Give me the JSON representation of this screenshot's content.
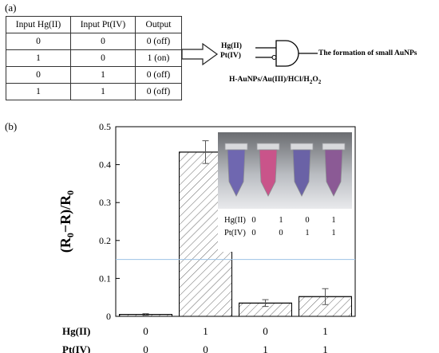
{
  "panel_a": {
    "label": "(a)",
    "table": {
      "headers": [
        "Input Hg(II)",
        "Input Pt(IV)",
        "Output"
      ],
      "rows": [
        [
          "0",
          "0",
          "0 (off)"
        ],
        [
          "1",
          "0",
          "1 (on)"
        ],
        [
          "0",
          "1",
          "0 (off)"
        ],
        [
          "1",
          "1",
          "0 (off)"
        ]
      ]
    },
    "gate": {
      "input1": "Hg(II)",
      "input2": "Pt(IV)",
      "output": "The formation of small AuNPs",
      "system": "H-AuNPs/Au(III)/HCl/H",
      "system_sub": "2",
      "system_o": "O",
      "system_sub2": "2"
    }
  },
  "panel_b": {
    "label": "(b)",
    "row_labels": [
      "Hg(II)",
      "Pt(IV)"
    ],
    "inset": {
      "tube_colors": [
        "#6f67b0",
        "#c9548a",
        "#6a62a6",
        "#8b5a95"
      ],
      "hg_label": "Hg(II)",
      "pt_label": "Pt(IV)",
      "hg_values": [
        "0",
        "1",
        "0",
        "1"
      ],
      "pt_values": [
        "0",
        "0",
        "1",
        "1"
      ]
    }
  },
  "chart_data": {
    "type": "bar",
    "categories": [
      "Hg(II)=0, Pt(IV)=0",
      "Hg(II)=1, Pt(IV)=0",
      "Hg(II)=0, Pt(IV)=1",
      "Hg(II)=1, Pt(IV)=1"
    ],
    "hg_values": [
      "0",
      "1",
      "0",
      "1"
    ],
    "pt_values": [
      "0",
      "0",
      "1",
      "1"
    ],
    "values": [
      0.005,
      0.433,
      0.035,
      0.052
    ],
    "errors": [
      0.002,
      0.03,
      0.009,
      0.021
    ],
    "ylabel_main": "(R",
    "ylabel_sub0": "0",
    "ylabel_mid": "−R)/R",
    "ylabel_sub1": "0",
    "ylim": [
      0,
      0.5
    ],
    "yticks": [
      0,
      0.1,
      0.2,
      0.3,
      0.4,
      0.5
    ],
    "ytick_labels": [
      "0",
      "0.1",
      "0.2",
      "0.3",
      "0.4",
      "0.5"
    ],
    "threshold": 0.15,
    "threshold_color": "#9dc3e6",
    "bar_pattern": "hatched"
  }
}
